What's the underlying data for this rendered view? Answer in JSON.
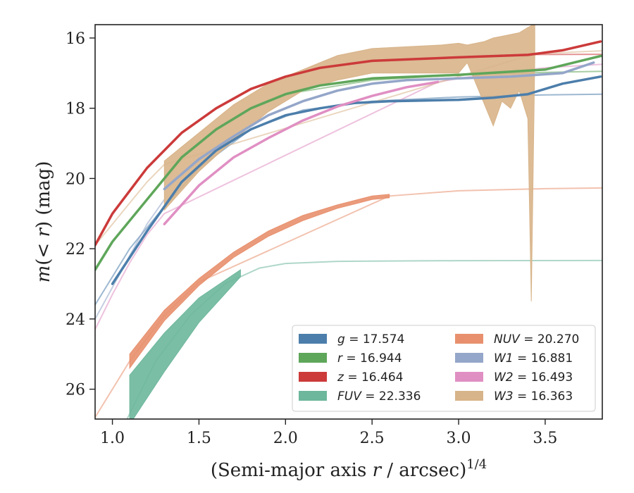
{
  "chart_data": {
    "type": "line",
    "xlabel": "(Semi-major axis r / arcsec)^1/4",
    "ylabel": "m(< r) (mag)",
    "xlim": [
      0.9,
      3.83
    ],
    "ylim": [
      26.85,
      15.62
    ],
    "y_inverted": true,
    "xticks": [
      "1.0",
      "1.5",
      "2.0",
      "2.5",
      "3.0",
      "3.5"
    ],
    "yticks": [
      "16",
      "18",
      "20",
      "22",
      "24",
      "26"
    ],
    "grid": false,
    "legend_position": "lower-right",
    "series": [
      {
        "name": "g = 17.574",
        "legend_prefix": "g",
        "legend_value": "17.574",
        "color": "#4c7eab",
        "x": [
          1.0,
          1.2,
          1.4,
          1.6,
          1.8,
          2.0,
          2.2,
          2.4,
          2.6,
          2.8,
          3.0,
          3.2,
          3.4,
          3.6,
          3.82
        ],
        "y": [
          23.0,
          21.5,
          20.1,
          19.2,
          18.6,
          18.2,
          18.0,
          17.85,
          17.8,
          17.78,
          17.76,
          17.7,
          17.6,
          17.3,
          17.1
        ],
        "model_x": [
          0.9,
          1.1,
          1.3,
          1.5,
          1.8,
          2.1,
          2.5,
          3.0,
          3.5,
          3.83
        ],
        "model_y": [
          23.6,
          22.0,
          20.8,
          19.7,
          18.6,
          18.05,
          17.8,
          17.68,
          17.62,
          17.6
        ]
      },
      {
        "name": "r = 16.944",
        "legend_prefix": "r",
        "legend_value": "16.944",
        "color": "#5ea65a",
        "x": [
          0.9,
          1.0,
          1.2,
          1.4,
          1.6,
          1.8,
          2.0,
          2.2,
          2.5,
          3.0,
          3.5,
          3.83
        ],
        "y": [
          22.6,
          21.8,
          20.6,
          19.4,
          18.6,
          18.0,
          17.6,
          17.35,
          17.15,
          17.05,
          16.9,
          16.5
        ],
        "model_x": [
          2.0,
          2.5,
          3.0,
          3.5,
          3.83
        ],
        "model_y": [
          17.6,
          17.2,
          17.05,
          16.98,
          16.95
        ]
      },
      {
        "name": "z = 16.464",
        "legend_prefix": "z",
        "legend_value": "16.464",
        "color": "#cc3a3a",
        "x": [
          0.9,
          1.0,
          1.2,
          1.4,
          1.6,
          1.8,
          2.0,
          2.2,
          2.5,
          3.0,
          3.4,
          3.6,
          3.82
        ],
        "y": [
          21.9,
          21.0,
          19.7,
          18.7,
          18.0,
          17.45,
          17.1,
          16.85,
          16.65,
          16.55,
          16.48,
          16.35,
          16.1
        ],
        "model_x": [
          3.4,
          3.83
        ],
        "model_y": [
          16.47,
          16.464
        ]
      },
      {
        "name": "FUV = 22.336",
        "legend_prefix": "FUV",
        "legend_value": "22.336",
        "color": "#6db79c",
        "band_x": [
          1.1,
          1.3,
          1.5,
          1.74
        ],
        "band_upper": [
          25.6,
          24.4,
          23.4,
          22.6
        ],
        "band_lower": [
          27.0,
          25.5,
          24.1,
          22.8
        ],
        "model_x": [
          1.08,
          1.25,
          1.45,
          1.65,
          1.85,
          2.0,
          2.3,
          3.0,
          3.83
        ],
        "model_y": [
          26.9,
          25.2,
          23.9,
          23.0,
          22.55,
          22.42,
          22.36,
          22.34,
          22.336
        ]
      },
      {
        "name": "NUV = 20.270",
        "legend_prefix": "NUV",
        "legend_value": "20.270",
        "color": "#e8906e",
        "band_x": [
          1.1,
          1.3,
          1.5,
          1.7,
          1.9,
          2.1,
          2.3,
          2.5,
          2.6
        ],
        "band_upper": [
          25.0,
          23.75,
          22.85,
          22.1,
          21.5,
          21.05,
          20.75,
          20.5,
          20.45
        ],
        "band_lower": [
          25.4,
          24.05,
          23.05,
          22.25,
          21.65,
          21.2,
          20.85,
          20.6,
          20.55
        ],
        "model_x": [
          0.9,
          1.0,
          1.1,
          1.3,
          1.5,
          2.6,
          3.0,
          3.5,
          3.83
        ],
        "model_y": [
          26.8,
          26.0,
          25.2,
          23.9,
          22.95,
          20.5,
          20.35,
          20.29,
          20.27
        ]
      },
      {
        "name": "W1 = 16.881",
        "legend_prefix": "W1",
        "legend_value": "16.881",
        "color": "#94a6c9",
        "x": [
          1.3,
          1.5,
          1.7,
          1.9,
          2.1,
          2.3,
          2.5,
          2.7,
          3.0,
          3.3,
          3.6,
          3.78
        ],
        "y": [
          20.3,
          19.45,
          18.8,
          18.2,
          17.8,
          17.5,
          17.3,
          17.2,
          17.15,
          17.1,
          17.0,
          16.7
        ],
        "model_x": [
          0.9,
          1.0,
          1.1,
          1.2,
          1.3
        ],
        "model_y": [
          24.0,
          23.1,
          22.2,
          21.3,
          20.6
        ]
      },
      {
        "name": "W2 = 16.493",
        "legend_prefix": "W2",
        "legend_value": "16.493",
        "color": "#e08fc3",
        "x": [
          1.3,
          1.5,
          1.7,
          1.9,
          2.1,
          2.3,
          2.5,
          2.7,
          2.88
        ],
        "y": [
          21.3,
          20.2,
          19.4,
          18.85,
          18.35,
          17.95,
          17.65,
          17.4,
          17.25
        ],
        "model_x": [
          0.9,
          1.0,
          1.1,
          1.2,
          1.3,
          2.88,
          3.2,
          3.5,
          3.83
        ],
        "model_y": [
          24.3,
          23.3,
          22.4,
          21.6,
          21.0,
          17.25,
          17.0,
          16.85,
          16.75
        ]
      },
      {
        "name": "W3 = 16.363",
        "legend_prefix": "W3",
        "legend_value": "16.363",
        "color": "#d8b48a",
        "band_x": [
          1.3,
          1.5,
          1.7,
          1.9,
          2.1,
          2.3,
          2.5,
          2.7,
          2.9,
          3.0,
          3.05,
          3.1,
          3.15,
          3.2,
          3.25,
          3.3,
          3.35,
          3.4,
          3.42,
          3.44
        ],
        "band_upper": [
          19.5,
          18.7,
          17.9,
          17.3,
          16.9,
          16.5,
          16.3,
          16.25,
          16.2,
          16.15,
          16.2,
          16.15,
          16.1,
          16.0,
          15.95,
          15.9,
          15.85,
          15.7,
          15.65,
          15.6
        ],
        "band_lower": [
          20.9,
          19.8,
          18.9,
          18.1,
          17.5,
          17.2,
          17.0,
          17.0,
          17.0,
          17.0,
          16.7,
          17.3,
          17.9,
          18.5,
          17.8,
          18.0,
          17.5,
          18.3,
          23.5,
          16.5
        ],
        "model_x": [
          0.9,
          1.0,
          1.1,
          1.2,
          1.3,
          3.44,
          3.83
        ],
        "model_y": [
          21.9,
          21.3,
          20.7,
          20.1,
          19.6,
          16.45,
          16.363
        ]
      }
    ]
  }
}
